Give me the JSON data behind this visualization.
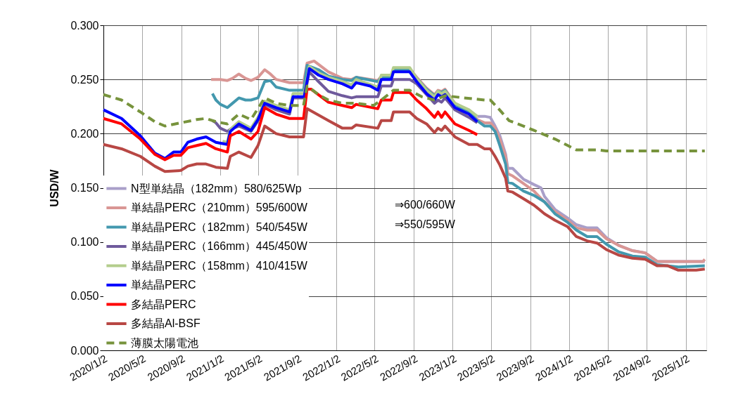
{
  "chart_data": {
    "type": "line",
    "ylabel": "USD/W",
    "grid": true,
    "legend": "bottom left",
    "xlim": [
      "2020-01-02",
      "2025-03-08"
    ],
    "ylim": [
      0,
      0.3
    ],
    "xticks": [
      {
        "value": "2020-01-02",
        "label": "2020/1/2"
      },
      {
        "value": "2020-05-02",
        "label": "2020/5/2"
      },
      {
        "value": "2020-09-02",
        "label": "2020/9/2"
      },
      {
        "value": "2021-01-02",
        "label": "2021/1/2"
      },
      {
        "value": "2021-05-02",
        "label": "2021/5/2"
      },
      {
        "value": "2021-09-02",
        "label": "2021/9/2"
      },
      {
        "value": "2022-01-02",
        "label": "2022/1/2"
      },
      {
        "value": "2022-05-02",
        "label": "2022/5/2"
      },
      {
        "value": "2022-09-02",
        "label": "2022/9/2"
      },
      {
        "value": "2023-01-02",
        "label": "2023/1/2"
      },
      {
        "value": "2023-05-02",
        "label": "2023/5/2"
      },
      {
        "value": "2023-09-02",
        "label": "2023/9/2"
      },
      {
        "value": "2024-01-02",
        "label": "2024/1/2"
      },
      {
        "value": "2024-05-02",
        "label": "2024/5/2"
      },
      {
        "value": "2024-09-02",
        "label": "2024/9/2"
      },
      {
        "value": "2025-01-02",
        "label": "2025/1/2"
      }
    ],
    "yticks": [
      {
        "value": 0,
        "label": "0.000"
      },
      {
        "value": 0.05,
        "label": "0.050"
      },
      {
        "value": 0.1,
        "label": "0.100"
      },
      {
        "value": 0.15,
        "label": "0.150"
      },
      {
        "value": 0.2,
        "label": "0.200"
      },
      {
        "value": 0.25,
        "label": "0.250"
      },
      {
        "value": 0.3,
        "label": "0.300"
      }
    ],
    "annotations": [
      "⇒600/660W",
      "⇒550/595W"
    ],
    "series": [
      {
        "name": "N型単結晶（182mm）580/625Wp",
        "color": "#a99fc9",
        "line_style": "solid",
        "x": [
          "2023-03-20",
          "2023-04-12",
          "2023-04-30",
          "2023-05-15",
          "2023-05-30",
          "2023-06-17",
          "2023-06-24",
          "2023-07-09",
          "2023-08-12",
          "2023-09-14",
          "2023-10-06",
          "2023-10-17",
          "2023-11-19",
          "2023-12-29",
          "2024-01-25",
          "2024-02-28",
          "2024-03-30",
          "2024-04-28",
          "2024-06-05",
          "2024-07-19",
          "2024-08-28",
          "2024-10-05",
          "2025-03-03"
        ],
        "values": [
          0.216,
          0.216,
          0.215,
          0.207,
          0.198,
          0.181,
          0.168,
          0.168,
          0.158,
          0.153,
          0.15,
          0.142,
          0.13,
          0.122,
          0.116,
          0.113,
          0.113,
          0.104,
          0.097,
          0.092,
          0.09,
          0.082,
          0.082
        ]
      },
      {
        "name": "単結晶PERC（210mm）595/600W",
        "color": "#d99694",
        "line_style": "solid",
        "x": [
          "2020-12-05",
          "2021-01-03",
          "2021-01-25",
          "2021-02-10",
          "2021-03-02",
          "2021-03-23",
          "2021-04-09",
          "2021-05-01",
          "2021-05-22",
          "2021-06-09",
          "2021-06-27",
          "2021-08-08",
          "2021-09-21",
          "2021-10-02",
          "2021-10-24",
          "2021-12-08",
          "2022-01-21",
          "2022-02-19",
          "2022-03-05",
          "2022-05-12",
          "2022-05-23",
          "2022-06-23",
          "2022-06-30",
          "2022-08-20",
          "2022-09-11",
          "2022-10-12",
          "2022-11-06",
          "2022-11-17",
          "2022-11-28",
          "2022-12-09",
          "2023-01-09",
          "2023-02-22",
          "2023-03-20",
          "2023-04-12",
          "2023-04-30",
          "2023-05-15",
          "2023-05-30",
          "2023-06-17",
          "2023-06-24",
          "2023-07-09",
          "2023-08-12",
          "2023-09-14",
          "2023-10-17",
          "2023-11-19",
          "2023-12-29",
          "2024-01-25",
          "2024-02-28",
          "2024-03-30",
          "2024-04-28",
          "2024-06-05",
          "2024-07-19",
          "2024-08-28",
          "2024-10-05",
          "2024-12-10",
          "2025-02-25",
          "2025-03-03"
        ],
        "values": [
          0.25,
          0.25,
          0.249,
          0.251,
          0.255,
          0.251,
          0.249,
          0.252,
          0.259,
          0.255,
          0.25,
          0.247,
          0.247,
          0.265,
          0.267,
          0.257,
          0.251,
          0.25,
          0.252,
          0.249,
          0.253,
          null,
          null,
          0.26,
          0.252,
          0.242,
          0.236,
          0.24,
          0.239,
          0.241,
          0.228,
          0.221,
          0.213,
          0.21,
          0.21,
          0.205,
          0.195,
          0.179,
          0.163,
          0.161,
          0.154,
          0.147,
          0.137,
          0.128,
          0.12,
          0.113,
          0.111,
          0.111,
          0.103,
          0.097,
          0.092,
          0.09,
          0.082,
          0.082,
          0.082,
          0.084
        ]
      },
      {
        "name": "単結晶PERC（182mm）540/545W",
        "color": "#4398ae",
        "line_style": "solid",
        "x": [
          "2020-12-09",
          "2020-12-20",
          "2021-01-03",
          "2021-01-25",
          "2021-02-10",
          "2021-03-02",
          "2021-03-23",
          "2021-04-09",
          "2021-05-01",
          "2021-05-22",
          "2021-06-09",
          "2021-06-27",
          "2021-08-08",
          "2021-09-21",
          "2021-10-02",
          "2021-11-07",
          "2021-12-08",
          "2022-01-21",
          "2022-02-19",
          "2022-03-05",
          "2022-05-12",
          "2022-05-23",
          "2022-06-23",
          "2022-06-30",
          "2022-08-20",
          "2022-09-11",
          "2022-10-12",
          "2022-11-06",
          "2022-11-17",
          "2022-11-28",
          "2022-12-09",
          "2023-01-09",
          "2023-02-22",
          "2023-03-20",
          "2023-04-12",
          "2023-04-30",
          "2023-05-15",
          "2023-05-30",
          "2023-06-17",
          "2023-06-24",
          "2023-07-09",
          "2023-08-12",
          "2023-09-14",
          "2023-10-17",
          "2023-11-19",
          "2023-12-29",
          "2024-01-25",
          "2024-02-28",
          "2024-03-30",
          "2024-04-28",
          "2024-06-05",
          "2024-07-19",
          "2024-08-28",
          "2024-10-05",
          "2024-12-10",
          "2025-03-03"
        ],
        "values": [
          0.237,
          0.231,
          0.227,
          0.224,
          0.228,
          0.233,
          0.231,
          0.231,
          0.233,
          0.248,
          0.249,
          0.243,
          0.24,
          0.24,
          0.263,
          0.259,
          0.253,
          0.25,
          0.249,
          0.252,
          0.248,
          0.252,
          0.252,
          0.259,
          0.259,
          0.251,
          0.241,
          0.235,
          0.239,
          0.238,
          0.24,
          0.227,
          0.22,
          0.212,
          0.207,
          0.207,
          0.202,
          0.189,
          0.172,
          0.155,
          0.154,
          0.147,
          0.143,
          0.137,
          0.126,
          0.118,
          0.111,
          0.105,
          0.105,
          0.098,
          0.091,
          0.087,
          0.086,
          0.079,
          0.077,
          0.078
        ]
      },
      {
        "name": "単結晶PERC（166mm）445/450W",
        "color": "#6f5a9c",
        "line_style": "solid",
        "x": [
          "2020-12-09",
          "2020-12-20",
          "2021-01-03",
          "2021-01-25",
          "2021-02-03",
          "2021-03-02",
          "2021-04-09",
          "2021-05-01",
          "2021-05-22",
          "2021-06-27",
          "2021-08-08",
          "2021-08-19",
          "2021-09-23",
          "2021-10-09",
          "2021-11-07",
          "2021-12-08",
          "2022-01-21",
          "2022-02-19",
          "2022-03-05",
          "2022-05-12",
          "2022-05-23",
          "2022-06-23",
          "2022-06-30",
          "2022-08-20",
          "2022-09-11",
          "2022-10-12",
          "2022-11-06",
          "2022-11-17",
          "2022-11-28",
          "2022-12-09",
          "2023-01-09",
          "2023-02-22",
          "2023-03-20"
        ],
        "values": [
          0.212,
          0.21,
          0.205,
          0.202,
          0.204,
          0.207,
          0.202,
          0.212,
          0.227,
          0.222,
          0.218,
          0.233,
          0.233,
          0.257,
          0.248,
          0.239,
          0.235,
          0.233,
          0.234,
          0.234,
          0.244,
          0.244,
          0.25,
          0.25,
          0.246,
          0.236,
          0.228,
          0.231,
          0.229,
          0.233,
          0.222,
          0.215,
          0.21
        ]
      },
      {
        "name": "単結晶PERC（158mm）410/415W",
        "color": "#b3cd8c",
        "line_style": "solid",
        "x": [
          "2021-01-10",
          "2021-01-25",
          "2021-02-03",
          "2021-03-02",
          "2021-04-09",
          "2021-05-01",
          "2021-05-22",
          "2021-06-27",
          "2021-08-08",
          "2021-08-19",
          "2021-09-23",
          "2021-10-09",
          "2021-11-07",
          "2021-12-08",
          "2022-01-21",
          "2022-02-19",
          "2022-03-05",
          "2022-05-12",
          "2022-05-23",
          "2022-06-23",
          "2022-06-30",
          "2022-08-20",
          "2022-09-11",
          "2022-10-12",
          "2022-11-06",
          "2022-11-17",
          "2022-11-28",
          "2022-12-09",
          "2023-01-09",
          "2023-02-22",
          "2023-03-20"
        ],
        "values": [
          0.193,
          0.192,
          0.204,
          0.211,
          0.205,
          0.215,
          0.23,
          0.226,
          0.222,
          0.237,
          0.237,
          0.262,
          0.256,
          0.252,
          0.248,
          0.245,
          0.25,
          0.243,
          0.254,
          0.254,
          0.261,
          0.261,
          0.251,
          0.24,
          0.234,
          0.239,
          0.237,
          0.239,
          0.228,
          0.222,
          0.216
        ]
      },
      {
        "name": "単結晶PERC",
        "color": "#0000ff",
        "line_style": "solid",
        "x": [
          "2020-01-02",
          "2020-02-28",
          "2020-04-27",
          "2020-06-11",
          "2020-07-13",
          "2020-08-09",
          "2020-09-01",
          "2020-09-23",
          "2020-10-21",
          "2020-11-19",
          "2020-12-20",
          "2021-01-25",
          "2021-02-03",
          "2021-03-02",
          "2021-04-09",
          "2021-05-01",
          "2021-05-22",
          "2021-06-27",
          "2021-08-08",
          "2021-08-19",
          "2021-09-23",
          "2021-10-09",
          "2021-11-07",
          "2021-12-08",
          "2022-01-21",
          "2022-02-19",
          "2022-03-05",
          "2022-04-18",
          "2022-05-12",
          "2022-05-23",
          "2022-06-23",
          "2022-06-30",
          "2022-08-20",
          "2022-09-11",
          "2022-10-12",
          "2022-11-06",
          "2022-11-17",
          "2022-11-28",
          "2022-12-09",
          "2023-01-09",
          "2023-02-22",
          "2023-03-20"
        ],
        "values": [
          0.222,
          0.214,
          0.198,
          0.182,
          0.177,
          0.183,
          0.183,
          0.192,
          0.195,
          0.197,
          0.192,
          0.19,
          0.202,
          0.209,
          0.203,
          0.213,
          0.228,
          0.224,
          0.22,
          0.234,
          0.234,
          0.26,
          0.254,
          0.25,
          0.246,
          0.242,
          0.247,
          0.244,
          0.24,
          0.25,
          0.25,
          0.257,
          0.257,
          0.248,
          0.237,
          0.231,
          0.236,
          0.234,
          0.236,
          0.224,
          0.218,
          0.211
        ]
      },
      {
        "name": "多結晶PERC",
        "color": "#ff0000",
        "line_style": "solid",
        "x": [
          "2020-01-02",
          "2020-02-28",
          "2020-04-27",
          "2020-06-11",
          "2020-07-13",
          "2020-08-09",
          "2020-09-01",
          "2020-09-23",
          "2020-10-21",
          "2020-11-19",
          "2020-12-20",
          "2021-01-25",
          "2021-02-03",
          "2021-03-02",
          "2021-04-09",
          "2021-05-01",
          "2021-05-22",
          "2021-06-27",
          "2021-08-08",
          "2021-09-21",
          "2021-10-02",
          "2021-10-15",
          "2021-12-08",
          "2022-01-21",
          "2022-02-19",
          "2022-03-05",
          "2022-05-12",
          "2022-05-23",
          "2022-06-23",
          "2022-06-30",
          "2022-08-20",
          "2022-09-11",
          "2022-10-12",
          "2022-11-06",
          "2022-11-17",
          "2022-11-28",
          "2022-12-09",
          "2023-01-09",
          "2023-02-22",
          "2023-03-20"
        ],
        "values": [
          0.214,
          0.209,
          0.195,
          0.181,
          0.176,
          0.18,
          0.18,
          0.187,
          0.189,
          0.191,
          0.186,
          0.183,
          0.198,
          0.202,
          0.195,
          0.202,
          0.224,
          0.218,
          0.214,
          0.214,
          0.241,
          0.241,
          0.229,
          0.226,
          0.224,
          0.227,
          0.223,
          0.231,
          0.231,
          0.238,
          0.238,
          0.231,
          0.223,
          0.215,
          0.22,
          0.215,
          0.22,
          0.209,
          0.203,
          0.199
        ]
      },
      {
        "name": "多結晶Al-BSF",
        "color": "#b84744",
        "line_style": "solid",
        "x": [
          "2020-01-02",
          "2020-02-28",
          "2020-04-27",
          "2020-06-11",
          "2020-07-13",
          "2020-09-01",
          "2020-09-23",
          "2020-10-21",
          "2020-11-19",
          "2020-12-20",
          "2021-01-25",
          "2021-02-03",
          "2021-03-02",
          "2021-04-09",
          "2021-05-01",
          "2021-05-22",
          "2021-06-27",
          "2021-08-08",
          "2021-09-21",
          "2021-10-02",
          "2021-12-08",
          "2022-01-21",
          "2022-02-19",
          "2022-03-05",
          "2022-05-12",
          "2022-05-23",
          "2022-06-23",
          "2022-06-30",
          "2022-08-20",
          "2022-09-11",
          "2022-10-12",
          "2022-11-06",
          "2022-11-17",
          "2022-11-28",
          "2022-12-09",
          "2023-01-09",
          "2023-02-22",
          "2023-03-20",
          "2023-04-12",
          "2023-04-30",
          "2023-05-15",
          "2023-05-30",
          "2023-06-17",
          "2023-06-24",
          "2023-07-09",
          "2023-08-12",
          "2023-09-14",
          "2023-10-17",
          "2023-11-19",
          "2023-12-29",
          "2024-01-25",
          "2024-02-28",
          "2024-03-30",
          "2024-04-28",
          "2024-06-05",
          "2024-07-19",
          "2024-08-28",
          "2024-10-05",
          "2024-11-07",
          "2024-12-10",
          "2025-02-04",
          "2025-03-03"
        ],
        "values": [
          0.19,
          0.186,
          0.179,
          0.17,
          0.165,
          0.166,
          0.17,
          0.172,
          0.172,
          0.169,
          0.168,
          0.179,
          0.183,
          0.178,
          0.189,
          0.207,
          0.2,
          0.197,
          0.197,
          0.223,
          0.212,
          0.205,
          0.205,
          0.208,
          0.205,
          0.212,
          0.212,
          0.22,
          0.22,
          0.214,
          0.209,
          0.201,
          0.205,
          0.203,
          0.207,
          0.197,
          0.19,
          0.19,
          0.186,
          0.186,
          0.179,
          0.171,
          0.159,
          0.147,
          0.146,
          0.14,
          0.134,
          0.126,
          0.12,
          0.114,
          0.105,
          0.101,
          0.099,
          0.093,
          0.088,
          0.085,
          0.084,
          0.078,
          0.078,
          0.074,
          0.074,
          0.075
        ]
      },
      {
        "name": "薄膜太陽電池",
        "color": "#77933c",
        "line_style": "dashed",
        "x": [
          "2020-01-02",
          "2020-02-28",
          "2020-04-27",
          "2020-06-11",
          "2020-07-13",
          "2020-09-01",
          "2020-10-21",
          "2020-11-19",
          "2020-12-20",
          "2021-01-25",
          "2021-03-02",
          "2021-04-09",
          "2021-05-22",
          "2021-06-27",
          "2021-08-08",
          "2021-09-21",
          "2021-10-02",
          "2021-11-07",
          "2021-12-08",
          "2022-01-21",
          "2022-03-05",
          "2022-04-29",
          "2022-05-23",
          "2022-06-30",
          "2022-08-20",
          "2022-09-27",
          "2022-11-06",
          "2022-12-09",
          "2023-02-07",
          "2023-04-12",
          "2023-04-30",
          "2023-05-26",
          "2023-06-28",
          "2023-08-12",
          "2023-09-14",
          "2023-10-17",
          "2023-11-19",
          "2023-12-29",
          "2024-01-25",
          "2024-03-30",
          "2024-04-28",
          "2025-03-03"
        ],
        "values": [
          0.236,
          0.231,
          0.22,
          0.211,
          0.207,
          0.21,
          0.213,
          0.214,
          0.211,
          0.209,
          0.218,
          0.213,
          0.233,
          0.228,
          0.226,
          0.226,
          0.244,
          0.236,
          0.231,
          0.228,
          0.228,
          0.226,
          0.231,
          0.24,
          0.24,
          0.234,
          0.231,
          0.235,
          0.233,
          0.231,
          0.231,
          0.223,
          0.212,
          0.207,
          0.203,
          0.199,
          0.195,
          0.189,
          0.185,
          0.185,
          0.184,
          0.184
        ]
      }
    ]
  }
}
